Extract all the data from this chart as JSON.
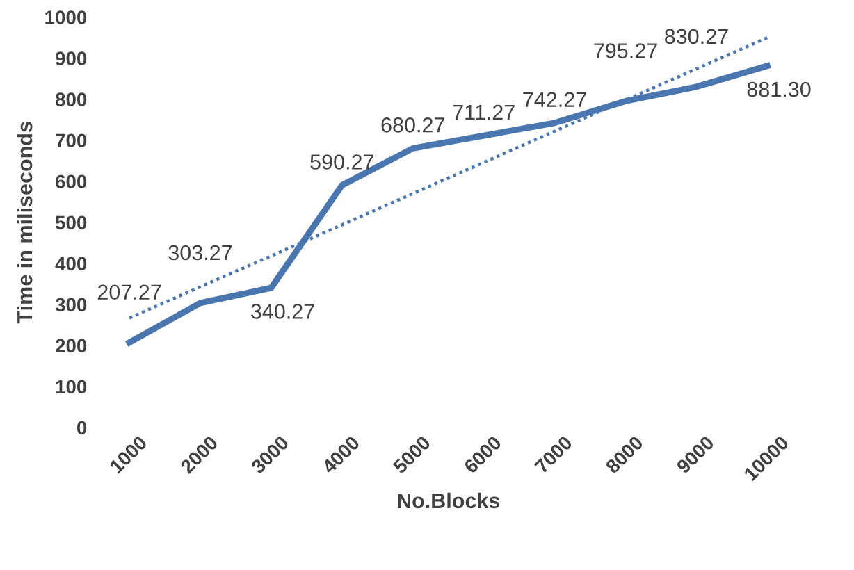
{
  "chart_data": {
    "type": "line",
    "xlabel": "No.Blocks",
    "ylabel": "Time in miliseconds",
    "categories": [
      "1000",
      "2000",
      "3000",
      "4000",
      "5000",
      "6000",
      "7000",
      "8000",
      "9000",
      "10000"
    ],
    "series": [
      {
        "color": "#4a76b0",
        "values": [
          207.27,
          303.27,
          340.27,
          590.27,
          680.27,
          711.27,
          742.27,
          795.27,
          830.27,
          881.3
        ],
        "value_labels": [
          "207.27",
          "303.27",
          "340.27",
          "590.27",
          "680.27",
          "711.27",
          "742.27",
          "795.27",
          "830.27",
          "881.30"
        ]
      },
      {
        "type": "line",
        "color": "#4a76b0",
        "line_style": "dotted",
        "values": [
          267,
          343,
          418,
          494,
          570,
          646,
          722,
          798,
          874,
          950
        ]
      }
    ],
    "ylim": [
      0,
      1000
    ],
    "yticks": [
      0,
      100,
      200,
      300,
      400,
      500,
      600,
      700,
      800,
      900,
      1000
    ],
    "grid": false,
    "legend": false,
    "marker": "none"
  }
}
